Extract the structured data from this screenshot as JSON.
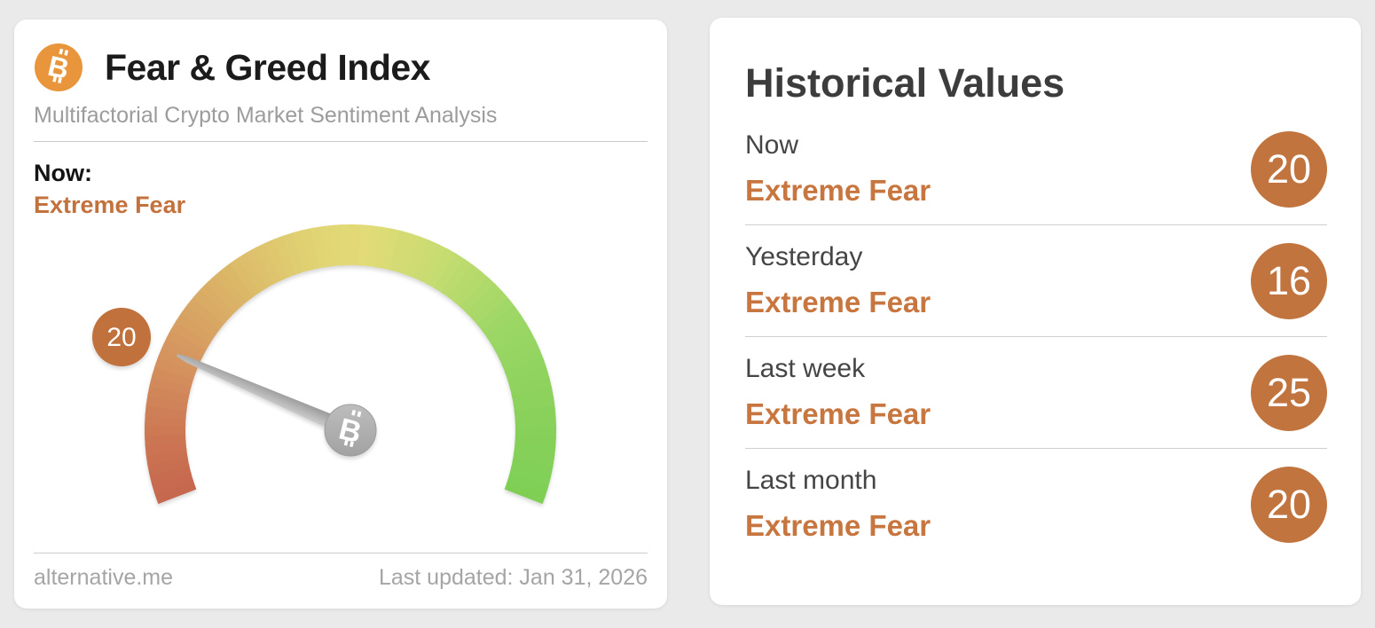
{
  "page": {
    "background_color": "#eaeaea"
  },
  "left_card": {
    "logo_icon": "bitcoin-icon",
    "title": "Fear & Greed Index",
    "subtitle": "Multifactorial Crypto Market Sentiment Analysis",
    "now_label": "Now:",
    "now_value": "Extreme Fear",
    "footer_left": "alternative.me",
    "footer_right": "Last updated: Jan 31, 2026"
  },
  "right_card": {
    "title": "Historical Values",
    "rows": [
      {
        "label": "Now",
        "sentiment": "Extreme Fear",
        "value": "20"
      },
      {
        "label": "Yesterday",
        "sentiment": "Extreme Fear",
        "value": "16"
      },
      {
        "label": "Last week",
        "sentiment": "Extreme Fear",
        "value": "25"
      },
      {
        "label": "Last month",
        "sentiment": "Extreme Fear",
        "value": "20"
      }
    ]
  },
  "chart_data": {
    "type": "gauge",
    "title": "Fear & Greed Index",
    "value": 20,
    "classification": "Extreme Fear",
    "min": 0,
    "max": 100,
    "start_angle_deg": 201,
    "end_angle_deg": -21,
    "arc_colors": [
      {
        "t": 0.0,
        "color": "#c6674e"
      },
      {
        "t": 0.08,
        "color": "#cc7553"
      },
      {
        "t": 0.2,
        "color": "#d5955f"
      },
      {
        "t": 0.32,
        "color": "#dbb567"
      },
      {
        "t": 0.44,
        "color": "#e0d273"
      },
      {
        "t": 0.52,
        "color": "#e2db77"
      },
      {
        "t": 0.62,
        "color": "#c8dc71"
      },
      {
        "t": 0.75,
        "color": "#9cd765"
      },
      {
        "t": 0.88,
        "color": "#8ad15b"
      },
      {
        "t": 1.0,
        "color": "#7ecf55"
      }
    ],
    "badge_value": "20",
    "badge_color": "#c0713c",
    "needle_color": "#ababab",
    "hub_symbol": "bitcoin",
    "historical": [
      {
        "label": "Now",
        "classification": "Extreme Fear",
        "value": 20
      },
      {
        "label": "Yesterday",
        "classification": "Extreme Fear",
        "value": 16
      },
      {
        "label": "Last week",
        "classification": "Extreme Fear",
        "value": 25
      },
      {
        "label": "Last month",
        "classification": "Extreme Fear",
        "value": 20
      }
    ],
    "colors": {
      "accent_orange": "#c4723d",
      "badge_orange": "#c0713c",
      "logo_orange": "#e8953c"
    }
  }
}
